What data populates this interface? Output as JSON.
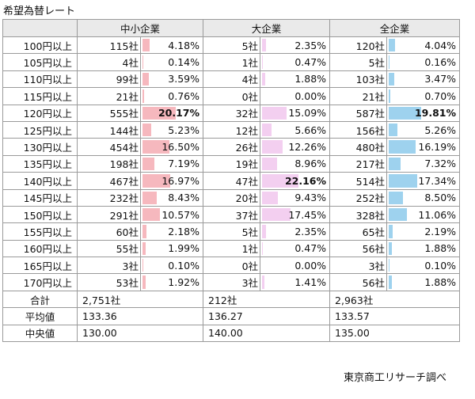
{
  "title": "希望為替レート",
  "source": "東京商工リサーチ調べ",
  "header": {
    "corner": "",
    "small": "中小企業",
    "large": "大企業",
    "all": "全企業"
  },
  "rows": [
    {
      "label": "100円以上",
      "small_count": "115社",
      "small_pct": "4.18%",
      "small_pct_value": 4.18,
      "large_count": "5社",
      "large_pct": "2.35%",
      "large_pct_value": 2.35,
      "all_count": "120社",
      "all_pct": "4.04%",
      "all_pct_value": 4.04
    },
    {
      "label": "105円以上",
      "small_count": "4社",
      "small_pct": "0.14%",
      "small_pct_value": 0.14,
      "large_count": "1社",
      "large_pct": "0.47%",
      "large_pct_value": 0.47,
      "all_count": "5社",
      "all_pct": "0.16%",
      "all_pct_value": 0.16
    },
    {
      "label": "110円以上",
      "small_count": "99社",
      "small_pct": "3.59%",
      "small_pct_value": 3.59,
      "large_count": "4社",
      "large_pct": "1.88%",
      "large_pct_value": 1.88,
      "all_count": "103社",
      "all_pct": "3.47%",
      "all_pct_value": 3.47
    },
    {
      "label": "115円以上",
      "small_count": "21社",
      "small_pct": "0.76%",
      "small_pct_value": 0.76,
      "large_count": "0社",
      "large_pct": "0.00%",
      "large_pct_value": 0,
      "all_count": "21社",
      "all_pct": "0.70%",
      "all_pct_value": 0.7
    },
    {
      "label": "120円以上",
      "small_count": "555社",
      "small_pct": "20.17%",
      "small_pct_value": 20.17,
      "small_bold": true,
      "large_count": "32社",
      "large_pct": "15.09%",
      "large_pct_value": 15.09,
      "all_count": "587社",
      "all_pct": "19.81%",
      "all_pct_value": 19.81,
      "all_bold": true
    },
    {
      "label": "125円以上",
      "small_count": "144社",
      "small_pct": "5.23%",
      "small_pct_value": 5.23,
      "large_count": "12社",
      "large_pct": "5.66%",
      "large_pct_value": 5.66,
      "all_count": "156社",
      "all_pct": "5.26%",
      "all_pct_value": 5.26
    },
    {
      "label": "130円以上",
      "small_count": "454社",
      "small_pct": "16.50%",
      "small_pct_value": 16.5,
      "large_count": "26社",
      "large_pct": "12.26%",
      "large_pct_value": 12.26,
      "all_count": "480社",
      "all_pct": "16.19%",
      "all_pct_value": 16.19
    },
    {
      "label": "135円以上",
      "small_count": "198社",
      "small_pct": "7.19%",
      "small_pct_value": 7.19,
      "large_count": "19社",
      "large_pct": "8.96%",
      "large_pct_value": 8.96,
      "all_count": "217社",
      "all_pct": "7.32%",
      "all_pct_value": 7.32
    },
    {
      "label": "140円以上",
      "small_count": "467社",
      "small_pct": "16.97%",
      "small_pct_value": 16.97,
      "large_count": "47社",
      "large_pct": "22.16%",
      "large_pct_value": 22.16,
      "large_bold": true,
      "all_count": "514社",
      "all_pct": "17.34%",
      "all_pct_value": 17.34
    },
    {
      "label": "145円以上",
      "small_count": "232社",
      "small_pct": "8.43%",
      "small_pct_value": 8.43,
      "large_count": "20社",
      "large_pct": "9.43%",
      "large_pct_value": 9.43,
      "all_count": "252社",
      "all_pct": "8.50%",
      "all_pct_value": 8.5
    },
    {
      "label": "150円以上",
      "small_count": "291社",
      "small_pct": "10.57%",
      "small_pct_value": 10.57,
      "large_count": "37社",
      "large_pct": "17.45%",
      "large_pct_value": 17.45,
      "all_count": "328社",
      "all_pct": "11.06%",
      "all_pct_value": 11.06
    },
    {
      "label": "155円以上",
      "small_count": "60社",
      "small_pct": "2.18%",
      "small_pct_value": 2.18,
      "large_count": "5社",
      "large_pct": "2.35%",
      "large_pct_value": 2.35,
      "all_count": "65社",
      "all_pct": "2.19%",
      "all_pct_value": 2.19
    },
    {
      "label": "160円以上",
      "small_count": "55社",
      "small_pct": "1.99%",
      "small_pct_value": 1.99,
      "large_count": "1社",
      "large_pct": "0.47%",
      "large_pct_value": 0.47,
      "all_count": "56社",
      "all_pct": "1.88%",
      "all_pct_value": 1.88
    },
    {
      "label": "165円以上",
      "small_count": "3社",
      "small_pct": "0.10%",
      "small_pct_value": 0.1,
      "large_count": "0社",
      "large_pct": "0.00%",
      "large_pct_value": 0,
      "all_count": "3社",
      "all_pct": "0.10%",
      "all_pct_value": 0.1
    },
    {
      "label": "170円以上",
      "small_count": "53社",
      "small_pct": "1.92%",
      "small_pct_value": 1.92,
      "large_count": "3社",
      "large_pct": "1.41%",
      "large_pct_value": 1.41,
      "all_count": "56社",
      "all_pct": "1.88%",
      "all_pct_value": 1.88
    }
  ],
  "summary": [
    {
      "label": "合計",
      "small": "2,751社",
      "large": "212社",
      "all": "2,963社"
    },
    {
      "label": "平均値",
      "small": "133.36",
      "large": "136.27",
      "all": "133.57"
    },
    {
      "label": "中央値",
      "small": "130.00",
      "large": "140.00",
      "all": "135.00"
    }
  ],
  "colors": {
    "small_bar": "#f6b8be",
    "large_bar": "#f3cff0",
    "all_bar": "#9ed2ee",
    "header_bg": "#eaeaea",
    "border": "#9a9a9a"
  }
}
